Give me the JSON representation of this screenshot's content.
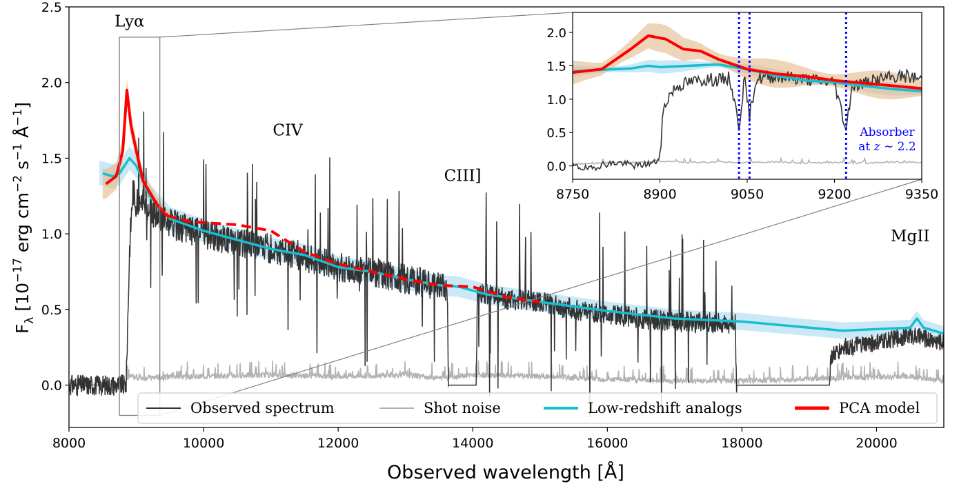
{
  "chart_data": [
    {
      "type": "line",
      "xlabel": "Observed wavelength [Å]",
      "ylabel": "F_λ [10^-17 erg cm^-2 s^-1 Å^-1]",
      "ylabel_parts": {
        "prefix": "F",
        "sub": "λ",
        "p1": " [10",
        "e1": "−17",
        "p2": " erg cm",
        "e2": "−2",
        "p3": " s",
        "e3": "−1",
        "p4": " Å",
        "e4": "−1",
        "p5": "]"
      },
      "xlim": [
        8000,
        21000
      ],
      "ylim": [
        -0.28,
        2.5
      ],
      "x_ticks": [
        8000,
        10000,
        12000,
        14000,
        16000,
        18000,
        20000
      ],
      "y_ticks": [
        0.0,
        0.5,
        1.0,
        1.5,
        2.0,
        2.5
      ],
      "x_tick_labels": [
        "8000",
        "10000",
        "12000",
        "14000",
        "16000",
        "18000",
        "20000"
      ],
      "y_tick_labels": [
        "0.0",
        "0.5",
        "1.0",
        "1.5",
        "2.0",
        "2.5"
      ],
      "grid": false,
      "legend": {
        "placement": "bottom",
        "entries": [
          {
            "label": "Observed spectrum",
            "color": "#333333"
          },
          {
            "label": "Shot noise",
            "color": "#b3b3b3"
          },
          {
            "label": "Low-redshift analogs",
            "color": "#17becf"
          },
          {
            "label": "PCA model",
            "color": "#ff0000"
          }
        ]
      },
      "annotations": [
        {
          "text": "Lyα",
          "x": 8900,
          "y": 2.37
        },
        {
          "text": "CIV",
          "x": 11250,
          "y": 1.65
        },
        {
          "text": "CIII]",
          "x": 13850,
          "y": 1.35
        },
        {
          "text": "MgII",
          "x": 20500,
          "y": 0.95
        }
      ],
      "zoom_box": {
        "x": [
          8750,
          9350
        ],
        "y": [
          -0.2,
          2.3
        ]
      },
      "series": [
        {
          "name": "Observed spectrum",
          "color": "#333333",
          "style": "noisy",
          "points": [
            [
              8000,
              0.0
            ],
            [
              8850,
              0.0
            ],
            [
              8900,
              0.9
            ],
            [
              8950,
              1.3
            ],
            [
              9000,
              1.2
            ],
            [
              9100,
              1.2
            ],
            [
              9300,
              1.12
            ],
            [
              9600,
              1.05
            ],
            [
              10000,
              1.0
            ],
            [
              10500,
              0.95
            ],
            [
              11000,
              0.9
            ],
            [
              11500,
              0.85
            ],
            [
              12000,
              0.78
            ],
            [
              12500,
              0.75
            ],
            [
              13000,
              0.7
            ],
            [
              13500,
              0.65
            ],
            [
              13620,
              0.63
            ],
            [
              13640,
              0.0
            ],
            [
              14050,
              0.0
            ],
            [
              14070,
              0.62
            ],
            [
              14500,
              0.57
            ],
            [
              15000,
              0.55
            ],
            [
              15500,
              0.5
            ],
            [
              16000,
              0.47
            ],
            [
              16500,
              0.44
            ],
            [
              17000,
              0.42
            ],
            [
              17500,
              0.41
            ],
            [
              17900,
              0.41
            ],
            [
              17920,
              0.0
            ],
            [
              19300,
              0.0
            ],
            [
              19320,
              0.18
            ],
            [
              19500,
              0.25
            ],
            [
              20000,
              0.28
            ],
            [
              20500,
              0.33
            ],
            [
              21000,
              0.28
            ]
          ]
        },
        {
          "name": "Shot noise",
          "color": "#b3b3b3",
          "style": "noisy",
          "points": [
            [
              8000,
              0.0
            ],
            [
              8800,
              0.0
            ],
            [
              8900,
              0.05
            ],
            [
              9000,
              0.04
            ],
            [
              10000,
              0.05
            ],
            [
              11000,
              0.06
            ],
            [
              12000,
              0.05
            ],
            [
              13000,
              0.06
            ],
            [
              13500,
              0.04
            ],
            [
              14000,
              0.06
            ],
            [
              15000,
              0.05
            ],
            [
              16000,
              0.03
            ],
            [
              17000,
              0.02
            ],
            [
              18000,
              0.02
            ],
            [
              19500,
              0.04
            ],
            [
              20500,
              0.05
            ],
            [
              21000,
              0.02
            ]
          ]
        },
        {
          "name": "Low-redshift analogs",
          "color": "#17becf",
          "style": "smooth",
          "points": [
            [
              8500,
              1.4
            ],
            [
              8650,
              1.38
            ],
            [
              8750,
              1.4
            ],
            [
              8900,
              1.5
            ],
            [
              9000,
              1.45
            ],
            [
              9200,
              1.25
            ],
            [
              9500,
              1.1
            ],
            [
              10000,
              1.02
            ],
            [
              10500,
              0.96
            ],
            [
              11000,
              0.9
            ],
            [
              11500,
              0.86
            ],
            [
              12000,
              0.78
            ],
            [
              12500,
              0.75
            ],
            [
              13000,
              0.7
            ],
            [
              13500,
              0.66
            ],
            [
              13800,
              0.65
            ],
            [
              14200,
              0.6
            ],
            [
              15000,
              0.55
            ],
            [
              16000,
              0.49
            ],
            [
              17000,
              0.44
            ],
            [
              18000,
              0.42
            ],
            [
              19000,
              0.38
            ],
            [
              19500,
              0.36
            ],
            [
              20000,
              0.37
            ],
            [
              20500,
              0.38
            ],
            [
              20600,
              0.44
            ],
            [
              20700,
              0.38
            ],
            [
              21000,
              0.34
            ]
          ]
        },
        {
          "name": "PCA model",
          "color": "#ff0000",
          "style": "solid-then-dashed",
          "dash_from": 9450,
          "points": [
            [
              8550,
              1.33
            ],
            [
              8700,
              1.38
            ],
            [
              8800,
              1.55
            ],
            [
              8860,
              1.95
            ],
            [
              8920,
              1.72
            ],
            [
              9000,
              1.55
            ],
            [
              9100,
              1.35
            ],
            [
              9300,
              1.2
            ],
            [
              9450,
              1.12
            ],
            [
              9800,
              1.08
            ],
            [
              10500,
              1.06
            ],
            [
              11000,
              1.02
            ],
            [
              11500,
              0.88
            ],
            [
              12000,
              0.8
            ],
            [
              12500,
              0.75
            ],
            [
              13000,
              0.7
            ],
            [
              13500,
              0.66
            ],
            [
              14000,
              0.65
            ],
            [
              14500,
              0.58
            ],
            [
              15000,
              0.55
            ]
          ]
        }
      ]
    },
    {
      "type": "line",
      "role": "inset",
      "xlim": [
        8750,
        9350
      ],
      "ylim": [
        -0.2,
        2.3
      ],
      "x_ticks": [
        8750,
        8900,
        9050,
        9200,
        9350
      ],
      "y_ticks": [
        0.0,
        0.5,
        1.0,
        1.5,
        2.0
      ],
      "x_tick_labels": [
        "8750",
        "8900",
        "9050",
        "9200",
        "9350"
      ],
      "y_tick_labels": [
        "0.0",
        "0.5",
        "1.0",
        "1.5",
        "2.0"
      ],
      "absorber_lines": [
        9036,
        9054,
        9220
      ],
      "absorber_color": "#0000ff",
      "annotation": {
        "line1": "Absorber",
        "line2_prefix": "at ",
        "line2_var": "z",
        "line2_value": " ∼ 2.2"
      },
      "series": [
        {
          "name": "Observed spectrum",
          "color": "#333333",
          "points": [
            [
              8750,
              0.0
            ],
            [
              8780,
              -0.05
            ],
            [
              8800,
              0.02
            ],
            [
              8830,
              0.05
            ],
            [
              8860,
              0.0
            ],
            [
              8890,
              0.05
            ],
            [
              8900,
              0.1
            ],
            [
              8905,
              0.8
            ],
            [
              8915,
              1.05
            ],
            [
              8930,
              1.2
            ],
            [
              8950,
              1.25
            ],
            [
              8980,
              1.3
            ],
            [
              9000,
              1.28
            ],
            [
              9020,
              1.32
            ],
            [
              9036,
              0.6
            ],
            [
              9045,
              1.3
            ],
            [
              9054,
              0.75
            ],
            [
              9065,
              1.3
            ],
            [
              9100,
              1.35
            ],
            [
              9150,
              1.3
            ],
            [
              9200,
              1.25
            ],
            [
              9220,
              0.55
            ],
            [
              9230,
              1.2
            ],
            [
              9280,
              1.3
            ],
            [
              9320,
              1.35
            ],
            [
              9350,
              1.3
            ]
          ]
        },
        {
          "name": "Shot noise",
          "color": "#b3b3b3",
          "points": [
            [
              8750,
              0.02
            ],
            [
              8800,
              0.03
            ],
            [
              8850,
              0.04
            ],
            [
              8900,
              0.06
            ],
            [
              8950,
              0.04
            ],
            [
              9000,
              0.05
            ],
            [
              9050,
              0.04
            ],
            [
              9100,
              0.05
            ],
            [
              9150,
              0.03
            ],
            [
              9200,
              0.04
            ],
            [
              9250,
              0.03
            ],
            [
              9300,
              0.05
            ],
            [
              9350,
              0.04
            ]
          ]
        },
        {
          "name": "Low-redshift analogs",
          "color": "#17becf",
          "points": [
            [
              8750,
              1.42
            ],
            [
              8800,
              1.44
            ],
            [
              8850,
              1.46
            ],
            [
              8880,
              1.5
            ],
            [
              8900,
              1.48
            ],
            [
              8950,
              1.5
            ],
            [
              9000,
              1.52
            ],
            [
              9050,
              1.45
            ],
            [
              9100,
              1.35
            ],
            [
              9150,
              1.28
            ],
            [
              9200,
              1.25
            ],
            [
              9250,
              1.2
            ],
            [
              9300,
              1.15
            ],
            [
              9350,
              1.12
            ]
          ]
        },
        {
          "name": "PCA model",
          "color": "#ff0000",
          "points": [
            [
              8750,
              1.4
            ],
            [
              8800,
              1.45
            ],
            [
              8850,
              1.75
            ],
            [
              8880,
              1.95
            ],
            [
              8910,
              1.9
            ],
            [
              8940,
              1.75
            ],
            [
              8970,
              1.72
            ],
            [
              9000,
              1.6
            ],
            [
              9050,
              1.45
            ],
            [
              9100,
              1.38
            ],
            [
              9150,
              1.34
            ],
            [
              9200,
              1.28
            ],
            [
              9250,
              1.24
            ],
            [
              9300,
              1.2
            ],
            [
              9350,
              1.16
            ]
          ]
        }
      ]
    }
  ]
}
